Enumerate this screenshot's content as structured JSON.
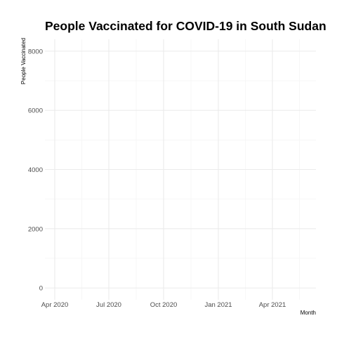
{
  "chart_data": {
    "type": "line",
    "title": "People Vaccinated for COVID-19 in South Sudan",
    "xlabel": "Month",
    "ylabel": "People Vaccinated",
    "x_ticks": [
      "Apr 2020",
      "Jul 2020",
      "Oct 2020",
      "Jan 2021",
      "Apr 2021"
    ],
    "y_ticks": [
      0,
      2000,
      4000,
      6000,
      8000
    ],
    "ylim": [
      -400,
      8400
    ],
    "grid": true,
    "series": []
  }
}
